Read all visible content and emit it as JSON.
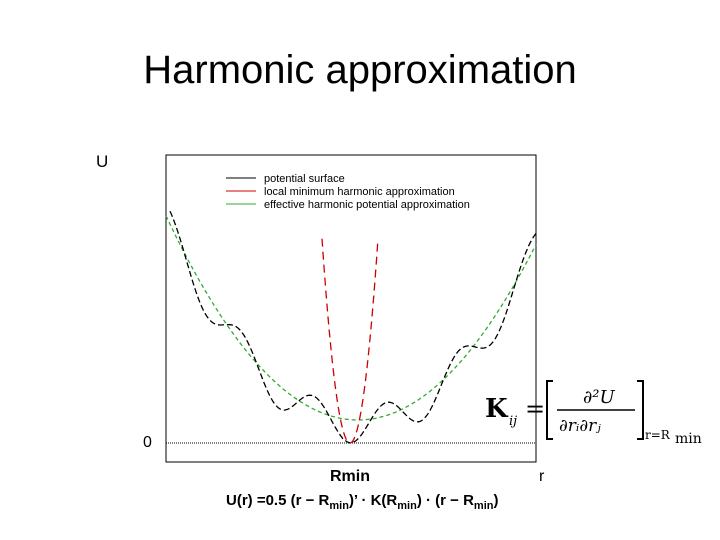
{
  "slide": {
    "title": "Harmonic approximation"
  },
  "formula": {
    "lhs": "U(r) =0.5 (r − R",
    "sub1": "min",
    "mid1": ")’ · K(R",
    "sub2": "min",
    "mid2": ") · (r − R",
    "sub3": "min",
    "end": ")"
  },
  "kij_equation": {
    "lhs_main": "K",
    "lhs_sub": "ij",
    "equals": "=",
    "numerator": "∂²U",
    "denominator": "∂rᵢ∂rⱼ",
    "eval_sub": "r=R",
    "eval_sub2": "min"
  },
  "chart_data": {
    "type": "line",
    "ylabel": "U",
    "xlabel": "r",
    "y_tick_labels": [
      "0"
    ],
    "x_tick_labels": [
      "Rmin"
    ],
    "grid": false,
    "legend_position": "top",
    "series": [
      {
        "name": "potential surface",
        "color": "#000000",
        "style": "dashed"
      },
      {
        "name": "local minimum harmonic approximation",
        "color": "#cc0000",
        "style": "dashed"
      },
      {
        "name": "effective harmonic potential approximation",
        "color": "#33aa33",
        "style": "dashed"
      }
    ]
  }
}
